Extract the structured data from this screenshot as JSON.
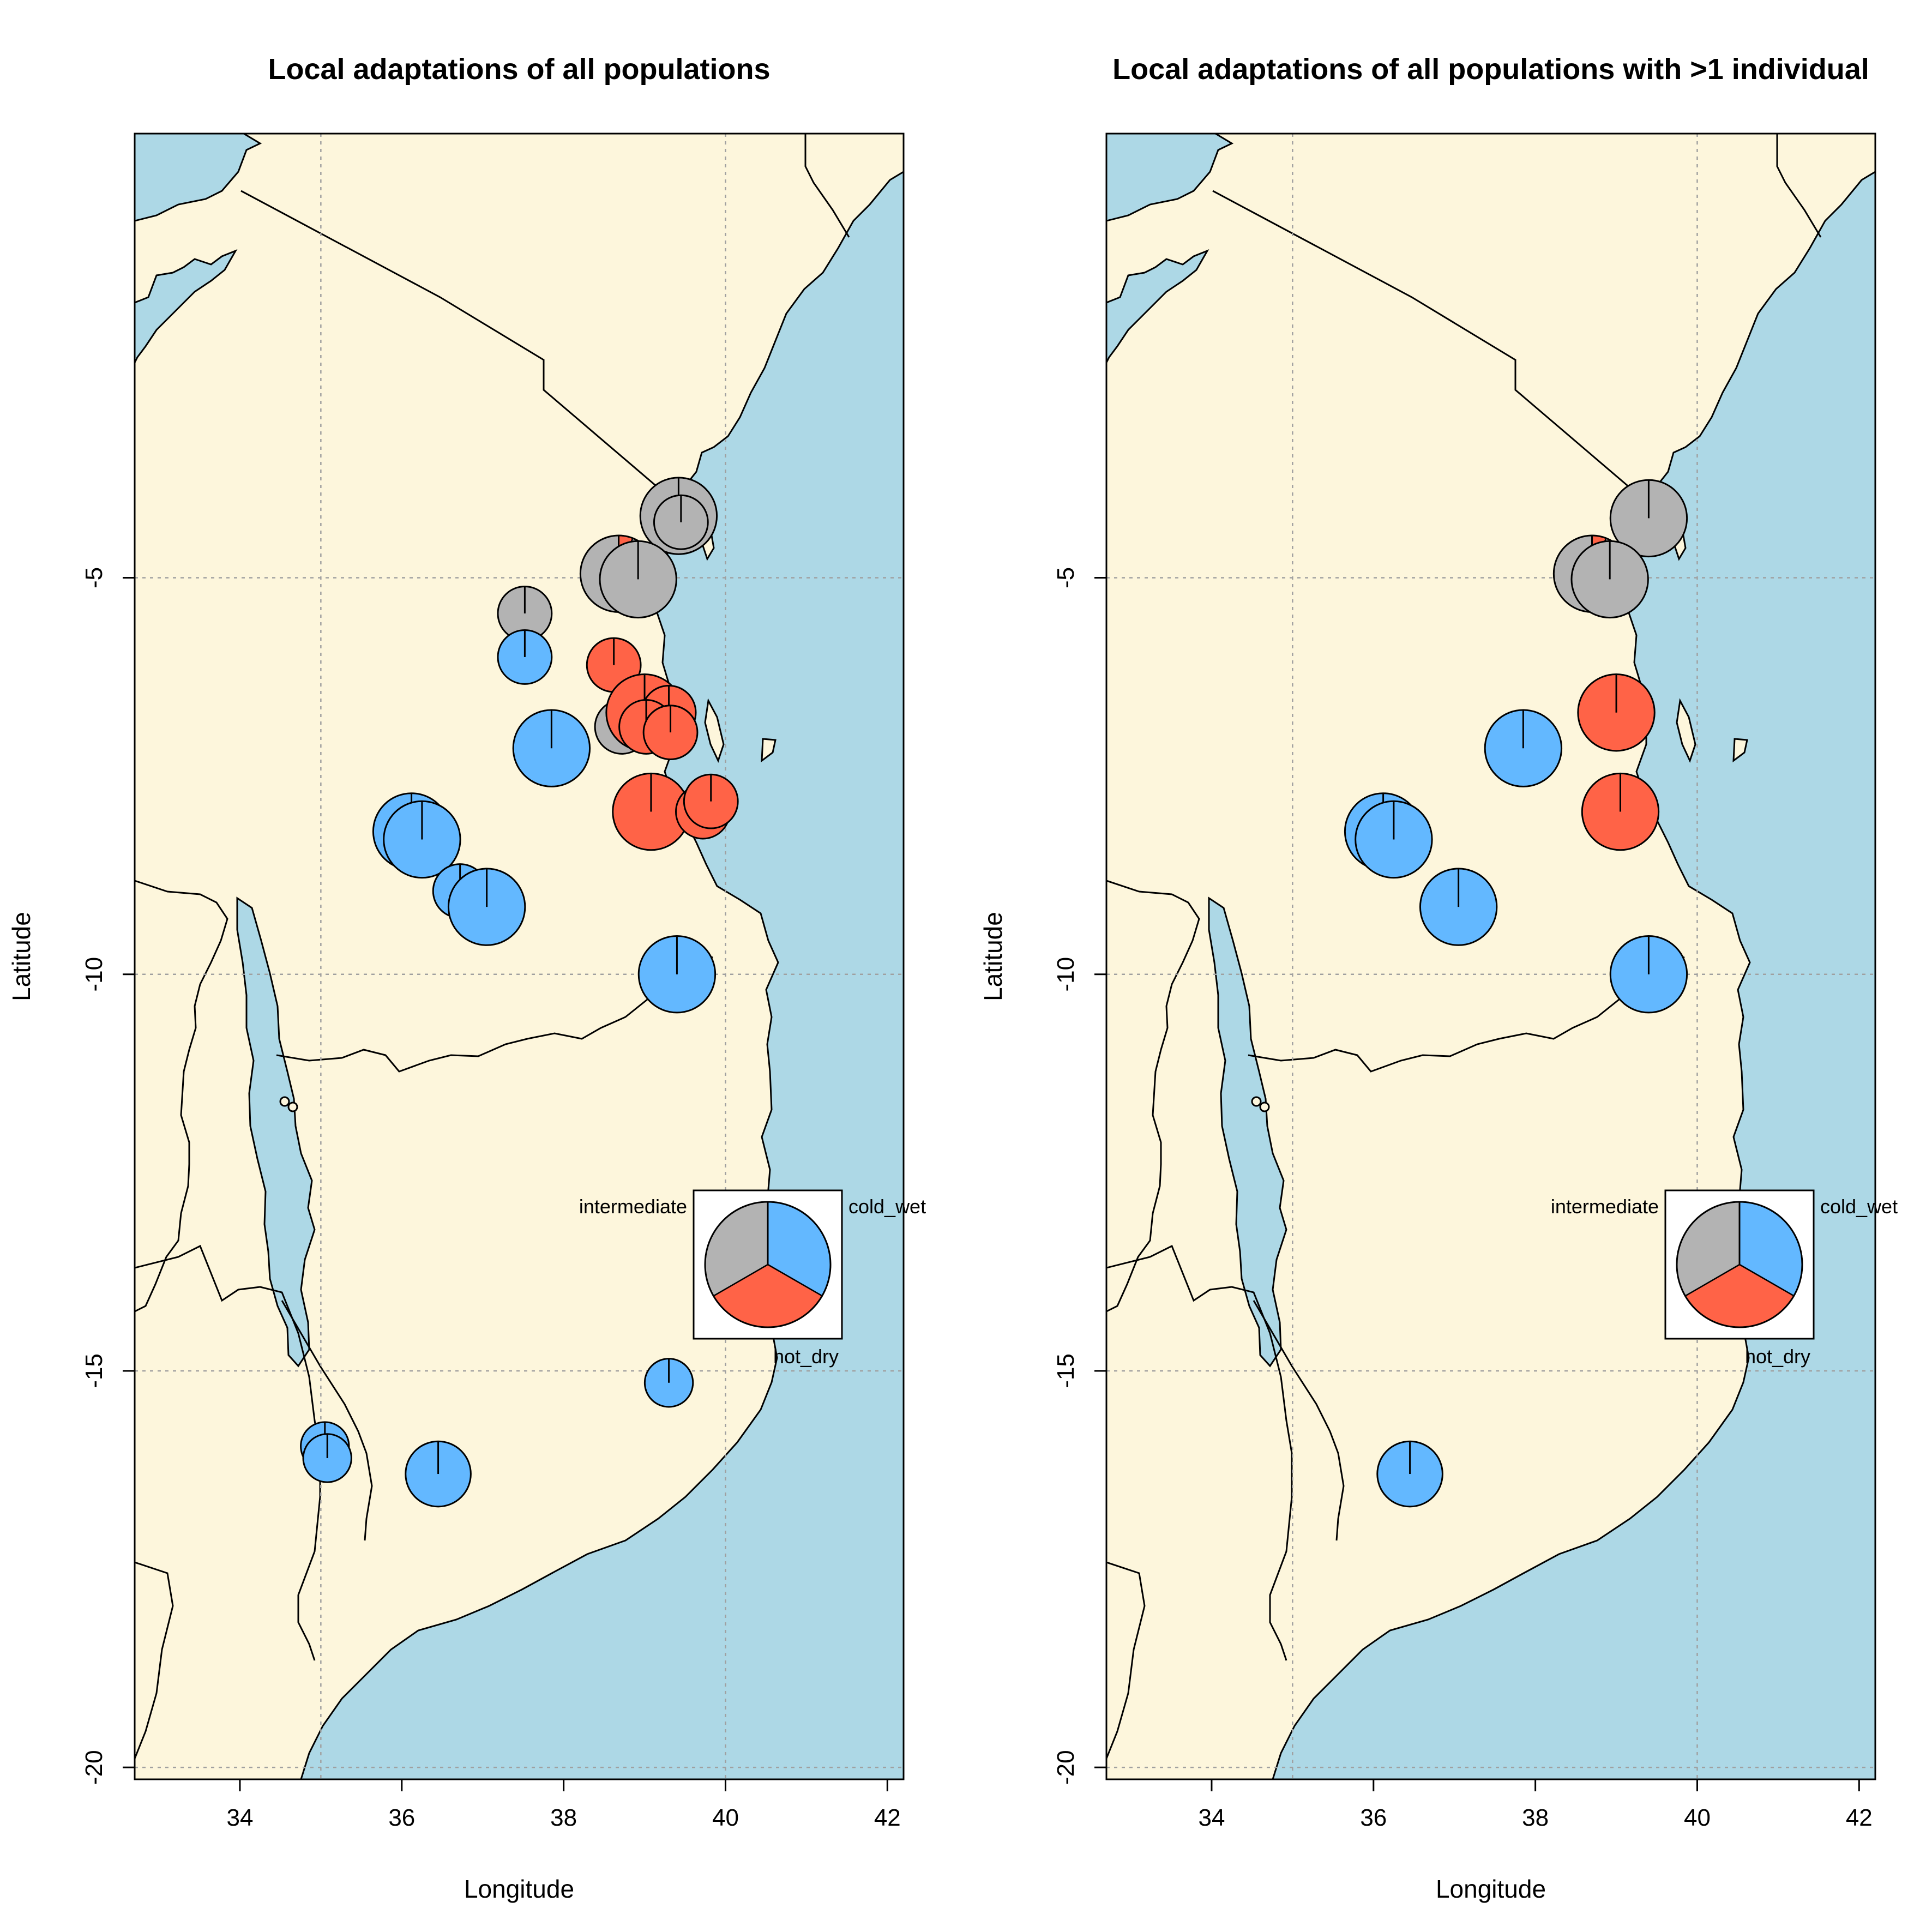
{
  "colors": {
    "sea": "#add8e6",
    "land": "#fdf6dc",
    "cold_wet": "#63b8ff",
    "hot_dry": "#ff6347",
    "intermediate": "#b3b3b3",
    "grid": "#a0a0a0"
  },
  "icons": {
    "pie": "pie-chart-icon"
  },
  "chart_data": [
    {
      "type": "map-pie",
      "title": "Local adaptations of all populations",
      "xlabel": "Longitude",
      "ylabel": "Latitude",
      "xlim": [
        32.7,
        42.2
      ],
      "ylim": [
        -20.15,
        0.6
      ],
      "xticks": [
        34,
        36,
        38,
        40,
        42
      ],
      "yticks": [
        -5,
        -10,
        -15,
        -20
      ],
      "grid": true,
      "legend": {
        "placement": "bottom-right",
        "categories": [
          "cold_wet",
          "hot_dry",
          "intermediate"
        ],
        "shares": [
          0.3333,
          0.3333,
          0.3334
        ]
      },
      "points": [
        {
          "lon": 39.42,
          "lat": -4.22,
          "size": 1.35,
          "cold_wet": 0.0,
          "hot_dry": 0.0,
          "intermediate": 1.0
        },
        {
          "lon": 39.45,
          "lat": -4.3,
          "size": 0.95,
          "cold_wet": 0.0,
          "hot_dry": 0.0,
          "intermediate": 1.0
        },
        {
          "lon": 38.68,
          "lat": -4.95,
          "size": 1.35,
          "cold_wet": 0.0,
          "hot_dry": 0.06,
          "intermediate": 0.94
        },
        {
          "lon": 38.8,
          "lat": -4.92,
          "size": 0.85,
          "cold_wet": 0.0,
          "hot_dry": 1.0,
          "intermediate": 0.0
        },
        {
          "lon": 38.92,
          "lat": -5.02,
          "size": 1.35,
          "cold_wet": 0.0,
          "hot_dry": 0.0,
          "intermediate": 1.0
        },
        {
          "lon": 37.52,
          "lat": -5.45,
          "size": 0.95,
          "cold_wet": 0.0,
          "hot_dry": 0.0,
          "intermediate": 1.0
        },
        {
          "lon": 37.52,
          "lat": -6.0,
          "size": 0.95,
          "cold_wet": 1.0,
          "hot_dry": 0.0,
          "intermediate": 0.0
        },
        {
          "lon": 38.62,
          "lat": -6.1,
          "size": 0.95,
          "cold_wet": 0.0,
          "hot_dry": 1.0,
          "intermediate": 0.0
        },
        {
          "lon": 38.72,
          "lat": -6.88,
          "size": 0.95,
          "cold_wet": 0.0,
          "hot_dry": 0.0,
          "intermediate": 1.0
        },
        {
          "lon": 39.0,
          "lat": -6.7,
          "size": 1.35,
          "cold_wet": 0.0,
          "hot_dry": 1.0,
          "intermediate": 0.0
        },
        {
          "lon": 39.3,
          "lat": -6.7,
          "size": 0.95,
          "cold_wet": 0.0,
          "hot_dry": 1.0,
          "intermediate": 0.0
        },
        {
          "lon": 39.02,
          "lat": -6.88,
          "size": 0.95,
          "cold_wet": 0.0,
          "hot_dry": 1.0,
          "intermediate": 0.0
        },
        {
          "lon": 39.32,
          "lat": -6.95,
          "size": 0.95,
          "cold_wet": 0.0,
          "hot_dry": 1.0,
          "intermediate": 0.0
        },
        {
          "lon": 37.85,
          "lat": -7.15,
          "size": 1.35,
          "cold_wet": 1.0,
          "hot_dry": 0.0,
          "intermediate": 0.0
        },
        {
          "lon": 39.08,
          "lat": -7.95,
          "size": 1.35,
          "cold_wet": 0.0,
          "hot_dry": 1.0,
          "intermediate": 0.0
        },
        {
          "lon": 39.72,
          "lat": -7.95,
          "size": 0.95,
          "cold_wet": 0.0,
          "hot_dry": 1.0,
          "intermediate": 0.0
        },
        {
          "lon": 39.82,
          "lat": -7.82,
          "size": 0.95,
          "cold_wet": 0.0,
          "hot_dry": 1.0,
          "intermediate": 0.0
        },
        {
          "lon": 36.12,
          "lat": -8.2,
          "size": 1.35,
          "cold_wet": 1.0,
          "hot_dry": 0.0,
          "intermediate": 0.0
        },
        {
          "lon": 36.25,
          "lat": -8.3,
          "size": 1.35,
          "cold_wet": 1.0,
          "hot_dry": 0.0,
          "intermediate": 0.0
        },
        {
          "lon": 36.72,
          "lat": -8.95,
          "size": 0.95,
          "cold_wet": 1.0,
          "hot_dry": 0.0,
          "intermediate": 0.0
        },
        {
          "lon": 37.05,
          "lat": -9.15,
          "size": 1.35,
          "cold_wet": 1.0,
          "hot_dry": 0.0,
          "intermediate": 0.0
        },
        {
          "lon": 39.4,
          "lat": -10.0,
          "size": 1.35,
          "cold_wet": 1.0,
          "hot_dry": 0.0,
          "intermediate": 0.0
        },
        {
          "lon": 39.3,
          "lat": -15.15,
          "size": 0.85,
          "cold_wet": 1.0,
          "hot_dry": 0.0,
          "intermediate": 0.0
        },
        {
          "lon": 35.05,
          "lat": -15.95,
          "size": 0.85,
          "cold_wet": 1.0,
          "hot_dry": 0.0,
          "intermediate": 0.0
        },
        {
          "lon": 35.08,
          "lat": -16.1,
          "size": 0.85,
          "cold_wet": 1.0,
          "hot_dry": 0.0,
          "intermediate": 0.0
        },
        {
          "lon": 36.45,
          "lat": -16.3,
          "size": 1.15,
          "cold_wet": 1.0,
          "hot_dry": 0.0,
          "intermediate": 0.0
        }
      ]
    },
    {
      "type": "map-pie",
      "title": "Local adaptations of all populations with >1 individual",
      "xlabel": "Longitude",
      "ylabel": "Latitude",
      "xlim": [
        32.7,
        42.2
      ],
      "ylim": [
        -20.15,
        0.6
      ],
      "xticks": [
        34,
        36,
        38,
        40,
        42
      ],
      "yticks": [
        -5,
        -10,
        -15,
        -20
      ],
      "grid": true,
      "legend": {
        "placement": "bottom-right",
        "categories": [
          "cold_wet",
          "hot_dry",
          "intermediate"
        ],
        "shares": [
          0.3333,
          0.3333,
          0.3334
        ]
      },
      "points": [
        {
          "lon": 39.4,
          "lat": -4.25,
          "size": 1.35,
          "cold_wet": 0.0,
          "hot_dry": 0.0,
          "intermediate": 1.0
        },
        {
          "lon": 38.7,
          "lat": -4.95,
          "size": 1.35,
          "cold_wet": 0.0,
          "hot_dry": 0.06,
          "intermediate": 0.94
        },
        {
          "lon": 38.92,
          "lat": -5.02,
          "size": 1.35,
          "cold_wet": 0.0,
          "hot_dry": 0.0,
          "intermediate": 1.0
        },
        {
          "lon": 39.0,
          "lat": -6.7,
          "size": 1.35,
          "cold_wet": 0.0,
          "hot_dry": 1.0,
          "intermediate": 0.0
        },
        {
          "lon": 37.85,
          "lat": -7.15,
          "size": 1.35,
          "cold_wet": 1.0,
          "hot_dry": 0.0,
          "intermediate": 0.0
        },
        {
          "lon": 39.05,
          "lat": -7.95,
          "size": 1.35,
          "cold_wet": 0.0,
          "hot_dry": 1.0,
          "intermediate": 0.0
        },
        {
          "lon": 36.12,
          "lat": -8.2,
          "size": 1.35,
          "cold_wet": 1.0,
          "hot_dry": 0.0,
          "intermediate": 0.0
        },
        {
          "lon": 36.25,
          "lat": -8.3,
          "size": 1.35,
          "cold_wet": 1.0,
          "hot_dry": 0.0,
          "intermediate": 0.0
        },
        {
          "lon": 37.05,
          "lat": -9.15,
          "size": 1.35,
          "cold_wet": 1.0,
          "hot_dry": 0.0,
          "intermediate": 0.0
        },
        {
          "lon": 39.4,
          "lat": -10.0,
          "size": 1.35,
          "cold_wet": 1.0,
          "hot_dry": 0.0,
          "intermediate": 0.0
        },
        {
          "lon": 36.45,
          "lat": -16.3,
          "size": 1.15,
          "cold_wet": 1.0,
          "hot_dry": 0.0,
          "intermediate": 0.0
        }
      ]
    }
  ]
}
